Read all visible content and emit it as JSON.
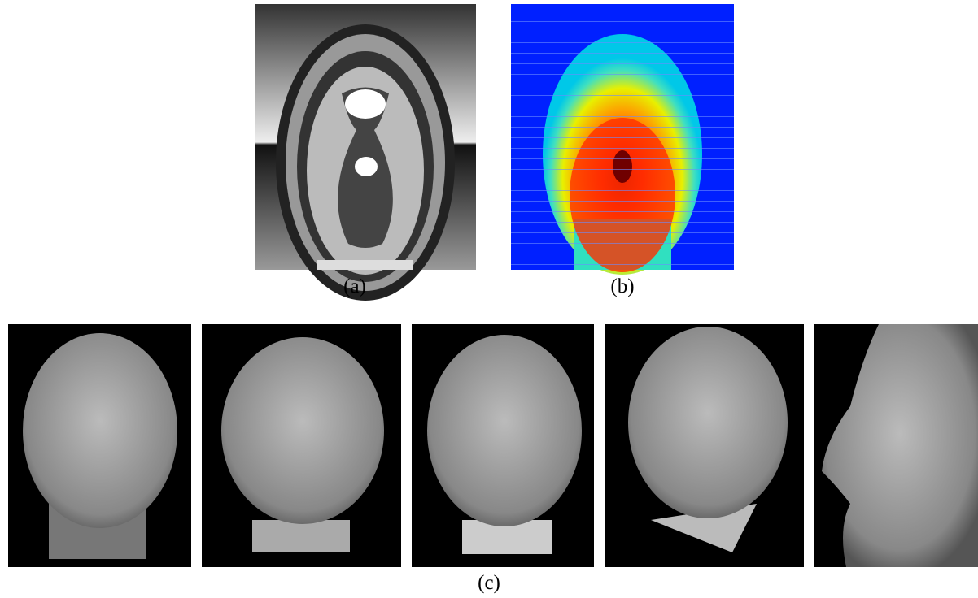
{
  "figure": {
    "labels": [
      "(a)",
      "(b)",
      "(c)"
    ]
  }
}
